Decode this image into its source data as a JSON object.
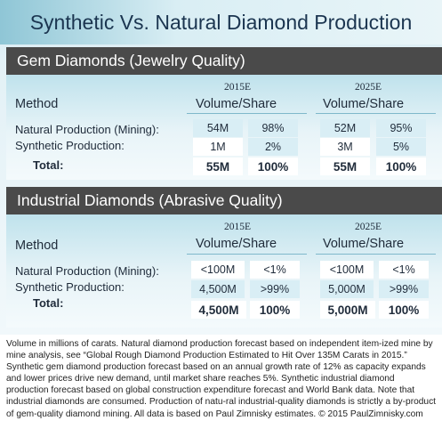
{
  "title": "Synthetic Vs. Natural Diamond Production",
  "gem": {
    "header": "Gem Diamonds (Jewelry Quality)",
    "method_label": "Method",
    "year_a": "2015E",
    "year_b": "2025E",
    "vs_label": "Volume/Share",
    "rows": [
      {
        "label": "Natural Production (Mining):",
        "a_vol": "54M",
        "a_share": "98%",
        "b_vol": "52M",
        "b_share": "95%"
      },
      {
        "label": "Synthetic Production:",
        "a_vol": "1M",
        "a_share": "2%",
        "b_vol": "3M",
        "b_share": "5%"
      }
    ],
    "total": {
      "label": "Total:",
      "a_vol": "55M",
      "a_share": "100%",
      "b_vol": "55M",
      "b_share": "100%"
    }
  },
  "industrial": {
    "header": "Industrial Diamonds (Abrasive Quality)",
    "method_label": "Method",
    "year_a": "2015E",
    "year_b": "2025E",
    "vs_label": "Volume/Share",
    "rows": [
      {
        "label": "Natural Production (Mining):",
        "a_vol": "<100M",
        "a_share": "<1%",
        "b_vol": "<100M",
        "b_share": "<1%"
      },
      {
        "label": "Synthetic Production:",
        "a_vol": "4,500M",
        "a_share": ">99%",
        "b_vol": "5,000M",
        "b_share": ">99%"
      }
    ],
    "total": {
      "label": "Total:",
      "a_vol": "4,500M",
      "a_share": "100%",
      "b_vol": "5,000M",
      "b_share": "100%"
    }
  },
  "footnote": "Volume in millions of carats. Natural diamond production forecast based on independent item-ized mine by mine analysis, see “Global Rough Diamond Production Estimated to Hit Over 135M Carats in 2015.” Synthetic gem diamond production forecast based on an annual growth rate of 12% as capacity expands and lower prices drive new demand, until market share reaches 5%. Synthetic industrial diamond production forecast based on global construction expenditure forecast and World Bank data. Note that industrial diamonds are consumed. Production of natu-ral industrial-quality diamonds is strictly a by-product of gem-quality diamond mining. All data is based on Paul Zimnisky estimates. © 2015 PaulZimnisky.com",
  "colors": {
    "band": "#4a4a4a",
    "cell": "#d9eef5",
    "title_text": "#1b3550"
  }
}
